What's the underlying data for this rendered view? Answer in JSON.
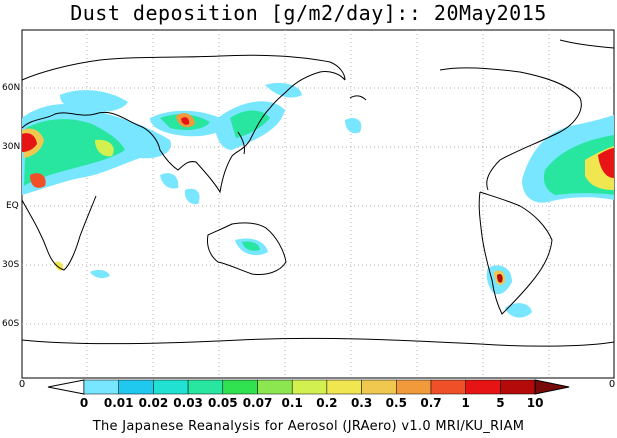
{
  "title": "Dust deposition [g/m2/day]:: 20May2015",
  "credit": "The Japanese Reanalysis for Aerosol (JRAero) v1.0 MRI/KU_RIAM",
  "lat_labels": [
    "60N",
    "30N",
    "EQ",
    "30S",
    "60S"
  ],
  "colorbar": {
    "end_labels": [
      "0",
      "0"
    ],
    "levels": [
      "0",
      "0.01",
      "0.02",
      "0.03",
      "0.05",
      "0.07",
      "0.1",
      "0.2",
      "0.3",
      "0.5",
      "0.7",
      "1",
      "5",
      "10"
    ],
    "colors": [
      "#ffffff",
      "#78e6ff",
      "#20c8f0",
      "#20e1d2",
      "#28e6a0",
      "#30e150",
      "#8ce650",
      "#d2f050",
      "#f0e650",
      "#f0c850",
      "#f09a3c",
      "#f05028",
      "#e61414",
      "#b40a0a",
      "#780a0a"
    ]
  }
}
